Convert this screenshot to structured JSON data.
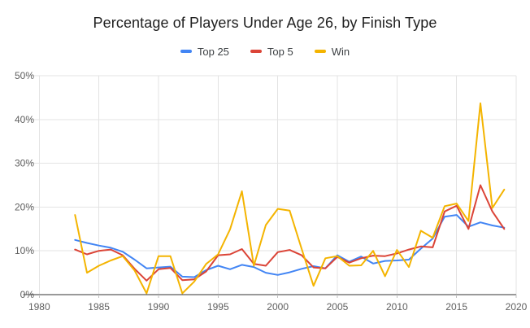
{
  "title": "Percentage of Players Under Age 26, by Finish Type",
  "legend": {
    "items": [
      "Top 25",
      "Top 5",
      "Win"
    ]
  },
  "chart_data": {
    "type": "line",
    "title": "Percentage of Players Under Age 26, by Finish Type",
    "xlabel": "",
    "ylabel": "",
    "x": [
      1983,
      1984,
      1985,
      1986,
      1987,
      1988,
      1989,
      1990,
      1991,
      1992,
      1993,
      1994,
      1995,
      1996,
      1997,
      1998,
      1999,
      2000,
      2001,
      2002,
      2003,
      2004,
      2005,
      2006,
      2007,
      2008,
      2009,
      2010,
      2011,
      2012,
      2013,
      2014,
      2015,
      2016,
      2017,
      2018,
      2019
    ],
    "series": [
      {
        "name": "Top 25",
        "color": "#4285f4",
        "values": [
          12.5,
          11.8,
          11.2,
          10.7,
          9.8,
          8.0,
          6.0,
          6.2,
          6.4,
          4.1,
          4.0,
          5.6,
          6.6,
          5.8,
          6.8,
          6.3,
          5.0,
          4.5,
          5.1,
          5.9,
          6.5,
          6.0,
          9.0,
          7.5,
          8.7,
          7.1,
          7.7,
          7.8,
          8.0,
          10.5,
          12.8,
          17.8,
          18.2,
          15.5,
          16.5,
          15.8,
          15.3
        ]
      },
      {
        "name": "Top 5",
        "color": "#db4437",
        "values": [
          10.3,
          9.2,
          10.0,
          10.3,
          9.0,
          5.9,
          3.2,
          5.8,
          6.1,
          3.3,
          3.5,
          5.3,
          9.0,
          9.2,
          10.4,
          7.0,
          6.6,
          9.7,
          10.2,
          9.0,
          6.2,
          6.0,
          8.6,
          7.3,
          8.3,
          8.9,
          8.8,
          9.4,
          10.3,
          11.0,
          10.8,
          19.0,
          20.3,
          15.0,
          25.0,
          19.0,
          15.0
        ]
      },
      {
        "name": "Win",
        "color": "#f4b400",
        "values": [
          18.2,
          5.0,
          6.6,
          7.8,
          8.8,
          5.5,
          0.3,
          8.8,
          8.8,
          0.3,
          3.0,
          7.0,
          9.2,
          14.9,
          23.6,
          6.6,
          15.9,
          19.6,
          19.2,
          10.5,
          2.0,
          8.3,
          8.8,
          6.6,
          6.7,
          10.0,
          4.2,
          10.2,
          6.3,
          14.6,
          13.0,
          20.2,
          20.8,
          16.8,
          43.7,
          19.8,
          24.0
        ]
      }
    ],
    "x_ticks": [
      1980,
      1985,
      1990,
      1995,
      2000,
      2005,
      2010,
      2015,
      2020
    ],
    "x_tick_labels": [
      "1980",
      "1985",
      "1990",
      "1995",
      "2000",
      "2005",
      "2010",
      "2015",
      "2020"
    ],
    "y_ticks": [
      0,
      10,
      20,
      30,
      40,
      50
    ],
    "y_tick_labels": [
      "0%",
      "10%",
      "20%",
      "30%",
      "40%",
      "50%"
    ],
    "xlim": [
      1980,
      2020
    ],
    "ylim": [
      0,
      50
    ],
    "grid": true,
    "legend_position": "top",
    "colors": {
      "background": "#ffffff",
      "gridline": "#e3e3e3",
      "axis_line": "#333333",
      "tick_mark": "#c0c0c0",
      "tick_label": "#5f5f5f",
      "title_text": "#212121",
      "legend_text": "#3c4043"
    }
  }
}
